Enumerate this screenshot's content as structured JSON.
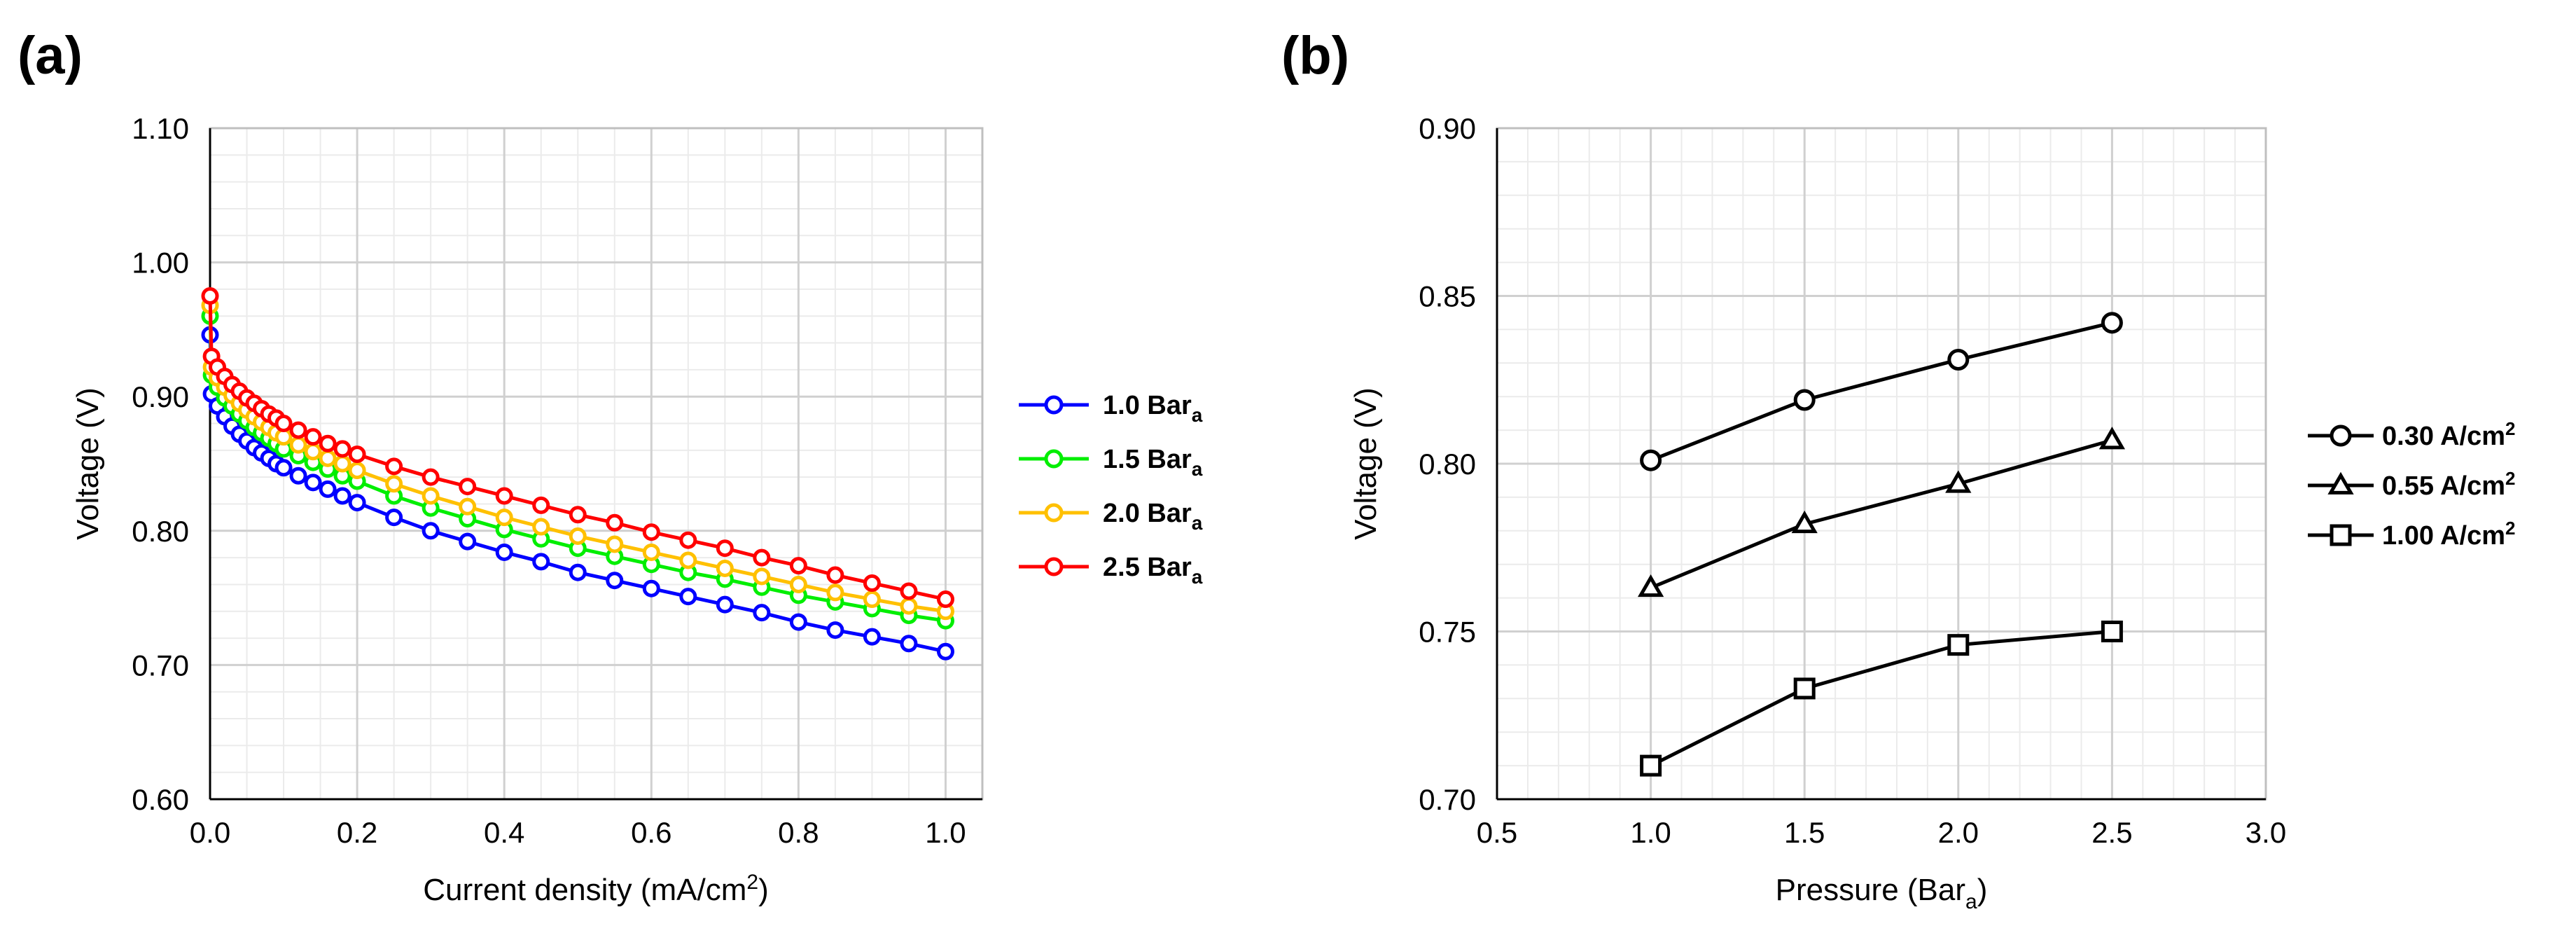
{
  "chart_data": [
    {
      "panel_label": "(a)",
      "type": "line",
      "xlabel": "Current density (mA/cm",
      "xlabel_sup": "2",
      "xlabel_end": ")",
      "ylabel": "Voltage (V)",
      "xlim": [
        0.0,
        1.05
      ],
      "ylim": [
        0.6,
        1.1
      ],
      "x_ticks": [
        0.0,
        0.2,
        0.4,
        0.6,
        0.8,
        1.0
      ],
      "x_tick_labels": [
        "0.0",
        "0.2",
        "0.4",
        "0.6",
        "0.8",
        "1.0"
      ],
      "y_ticks": [
        0.6,
        0.7,
        0.8,
        0.9,
        1.0,
        1.1
      ],
      "y_tick_labels": [
        "0.60",
        "0.70",
        "0.80",
        "0.90",
        "1.00",
        "1.10"
      ],
      "grid": true,
      "legend_position": "right",
      "x": [
        0.0,
        0.002,
        0.01,
        0.02,
        0.03,
        0.04,
        0.05,
        0.06,
        0.07,
        0.08,
        0.09,
        0.1,
        0.12,
        0.14,
        0.16,
        0.18,
        0.2,
        0.25,
        0.3,
        0.35,
        0.4,
        0.45,
        0.5,
        0.55,
        0.6,
        0.65,
        0.7,
        0.75,
        0.8,
        0.85,
        0.9,
        0.95,
        1.0
      ],
      "series": [
        {
          "name": "1.0 Bar",
          "subscript": "a",
          "color": "#0000ff",
          "values": [
            0.946,
            0.902,
            0.893,
            0.885,
            0.878,
            0.872,
            0.867,
            0.862,
            0.858,
            0.854,
            0.85,
            0.847,
            0.841,
            0.836,
            0.831,
            0.826,
            0.821,
            0.81,
            0.8,
            0.792,
            0.784,
            0.777,
            0.769,
            0.763,
            0.757,
            0.751,
            0.745,
            0.739,
            0.732,
            0.726,
            0.721,
            0.716,
            0.71
          ]
        },
        {
          "name": "1.5 Bar",
          "subscript": "a",
          "color": "#00ee00",
          "values": [
            0.96,
            0.916,
            0.907,
            0.899,
            0.893,
            0.887,
            0.882,
            0.877,
            0.873,
            0.869,
            0.865,
            0.861,
            0.856,
            0.851,
            0.846,
            0.841,
            0.837,
            0.826,
            0.817,
            0.809,
            0.801,
            0.794,
            0.787,
            0.781,
            0.775,
            0.769,
            0.764,
            0.758,
            0.752,
            0.747,
            0.742,
            0.737,
            0.733
          ]
        },
        {
          "name": "2.0 Bar",
          "subscript": "a",
          "color": "#ffc000",
          "values": [
            0.968,
            0.922,
            0.914,
            0.907,
            0.901,
            0.895,
            0.89,
            0.885,
            0.881,
            0.877,
            0.873,
            0.87,
            0.864,
            0.859,
            0.854,
            0.85,
            0.845,
            0.835,
            0.826,
            0.818,
            0.81,
            0.803,
            0.796,
            0.79,
            0.784,
            0.778,
            0.772,
            0.766,
            0.76,
            0.754,
            0.749,
            0.744,
            0.74
          ]
        },
        {
          "name": "2.5 Bar",
          "subscript": "a",
          "color": "#ff0000",
          "values": [
            0.975,
            0.93,
            0.922,
            0.915,
            0.909,
            0.904,
            0.899,
            0.895,
            0.891,
            0.887,
            0.884,
            0.88,
            0.875,
            0.87,
            0.865,
            0.861,
            0.857,
            0.848,
            0.84,
            0.833,
            0.826,
            0.819,
            0.812,
            0.806,
            0.799,
            0.793,
            0.787,
            0.78,
            0.774,
            0.767,
            0.761,
            0.755,
            0.749
          ]
        }
      ]
    },
    {
      "panel_label": "(b)",
      "type": "line",
      "xlabel": "Pressure (Bar",
      "xlabel_sub": "a",
      "xlabel_end": ")",
      "ylabel": "Voltage (V)",
      "xlim": [
        0.5,
        3.0
      ],
      "ylim": [
        0.7,
        0.9
      ],
      "x_ticks": [
        0.5,
        1.0,
        1.5,
        2.0,
        2.5,
        3.0
      ],
      "x_tick_labels": [
        "0.5",
        "1.0",
        "1.5",
        "2.0",
        "2.5",
        "3.0"
      ],
      "y_ticks": [
        0.7,
        0.75,
        0.8,
        0.85,
        0.9
      ],
      "y_tick_labels": [
        "0.70",
        "0.75",
        "0.80",
        "0.85",
        "0.90"
      ],
      "grid": true,
      "legend_position": "right",
      "x": [
        1.0,
        1.5,
        2.0,
        2.5
      ],
      "series": [
        {
          "name": "0.30 A/cm",
          "sup": "2",
          "marker": "circle",
          "color": "#000000",
          "values": [
            0.801,
            0.819,
            0.831,
            0.842
          ]
        },
        {
          "name": "0.55 A/cm",
          "sup": "2",
          "marker": "triangle",
          "color": "#000000",
          "values": [
            0.763,
            0.782,
            0.794,
            0.807
          ]
        },
        {
          "name": "1.00 A/cm",
          "sup": "2",
          "marker": "square",
          "color": "#000000",
          "values": [
            0.71,
            0.733,
            0.746,
            0.75
          ]
        }
      ]
    }
  ]
}
